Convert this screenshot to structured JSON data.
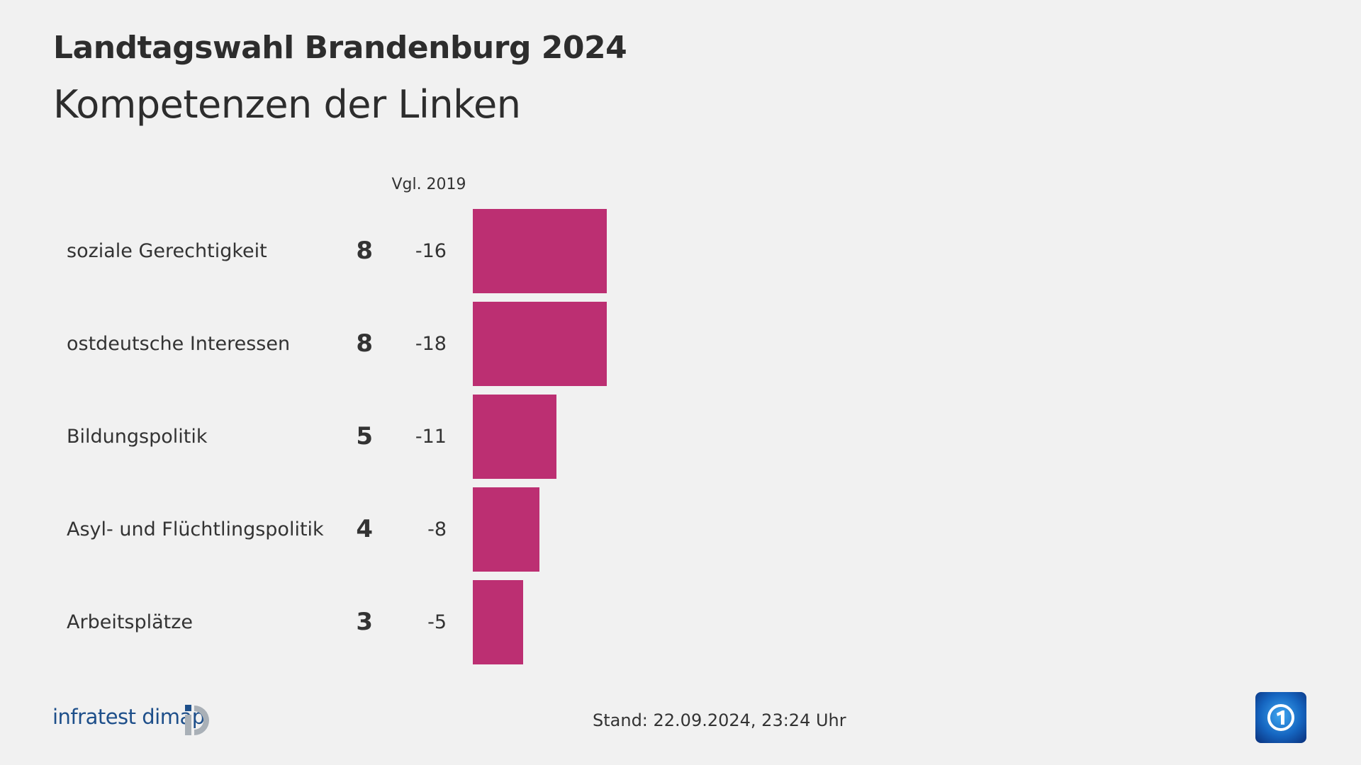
{
  "header": {
    "title": "Landtagswahl Brandenburg 2024",
    "subtitle": "Kompetenzen der Linken"
  },
  "chart_data": {
    "type": "bar",
    "orientation": "horizontal",
    "title": "Landtagswahl Brandenburg 2024",
    "subtitle": "Kompetenzen der Linken",
    "comparison_header": "Vgl. 2019",
    "categories": [
      "soziale Gerechtigkeit",
      "ostdeutsche Interessen",
      "Bildungspolitik",
      "Asyl- und Flüchtlingspolitik",
      "Arbeitsplätze"
    ],
    "values": [
      8,
      8,
      5,
      4,
      3
    ],
    "value_labels": [
      "8",
      "8",
      "5",
      "4",
      "3"
    ],
    "change_labels": [
      "-16",
      "-18",
      "-11",
      "-8",
      "-5"
    ],
    "changes": [
      -16,
      -18,
      -11,
      -8,
      -5
    ],
    "bar_color": "#bc2f72",
    "grid": false
  },
  "footer": {
    "source_logo": "infratest dimap",
    "stand": "Stand:  22.09.2024, 23:24 Uhr",
    "broadcaster_logo": "ARD Das Erste"
  },
  "colors": {
    "background": "#f1f1f1",
    "bar": "#bc2f72",
    "logo_blue": "#1e4f8a",
    "logo_grey": "#a9b0b7"
  }
}
